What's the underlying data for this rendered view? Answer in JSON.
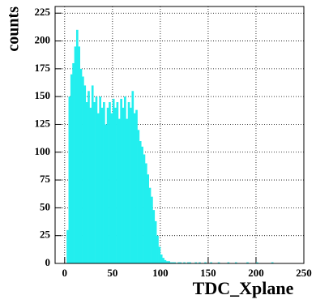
{
  "chart_data": {
    "type": "histogram",
    "x_label": "TDC_Xplane",
    "y_label": "counts",
    "color": "#22eeee",
    "grid": true,
    "bins": [
      0,
      2,
      4,
      6,
      8,
      10,
      12,
      14,
      16,
      18,
      20,
      22,
      24,
      26,
      28,
      30,
      32,
      34,
      36,
      38,
      40,
      42,
      44,
      46,
      48,
      50,
      52,
      54,
      56,
      58,
      60,
      62,
      64,
      66,
      68,
      70,
      72,
      74,
      76,
      78,
      80,
      82,
      84,
      86,
      88,
      90,
      92,
      94,
      96,
      98,
      100,
      102,
      104,
      106,
      108,
      110,
      112,
      114,
      116,
      118,
      120,
      122,
      124,
      126,
      128,
      130,
      132,
      134,
      136,
      138,
      140,
      142,
      144,
      146,
      148,
      150,
      152,
      154,
      156,
      158,
      160,
      162,
      164,
      166,
      168,
      170,
      172,
      174,
      176,
      178,
      180,
      182,
      184,
      186,
      188,
      190,
      192,
      194,
      196,
      198,
      200,
      202,
      204,
      206,
      208,
      210,
      212,
      214,
      216,
      218,
      220,
      222,
      224,
      226,
      228,
      230,
      232,
      234,
      236,
      238,
      240
    ],
    "values": [
      0,
      30,
      150,
      170,
      180,
      195,
      210,
      195,
      175,
      168,
      160,
      145,
      155,
      140,
      160,
      145,
      150,
      135,
      150,
      140,
      145,
      125,
      140,
      145,
      135,
      148,
      140,
      145,
      130,
      148,
      140,
      150,
      130,
      145,
      140,
      155,
      135,
      138,
      120,
      110,
      105,
      98,
      90,
      80,
      68,
      60,
      48,
      38,
      25,
      15,
      8,
      5,
      3,
      2,
      2,
      1,
      1,
      1,
      0,
      1,
      1,
      0,
      1,
      0,
      1,
      1,
      0,
      0,
      1,
      0,
      1,
      0,
      0,
      1,
      0,
      0,
      1,
      0,
      0,
      0,
      1,
      0,
      0,
      0,
      0,
      1,
      0,
      0,
      0,
      1,
      0,
      0,
      0,
      0,
      0,
      1,
      0,
      0,
      0,
      0,
      1,
      0,
      0,
      0,
      0,
      0,
      0,
      0,
      1,
      0,
      0,
      0,
      0,
      0,
      0,
      0,
      0,
      0,
      0,
      0
    ],
    "xlim": [
      -10,
      250
    ],
    "ylim": [
      0,
      231
    ],
    "xticks": [
      0,
      50,
      100,
      150,
      200,
      250
    ],
    "yticks": [
      0,
      25,
      50,
      75,
      100,
      125,
      150,
      175,
      200,
      225
    ]
  }
}
